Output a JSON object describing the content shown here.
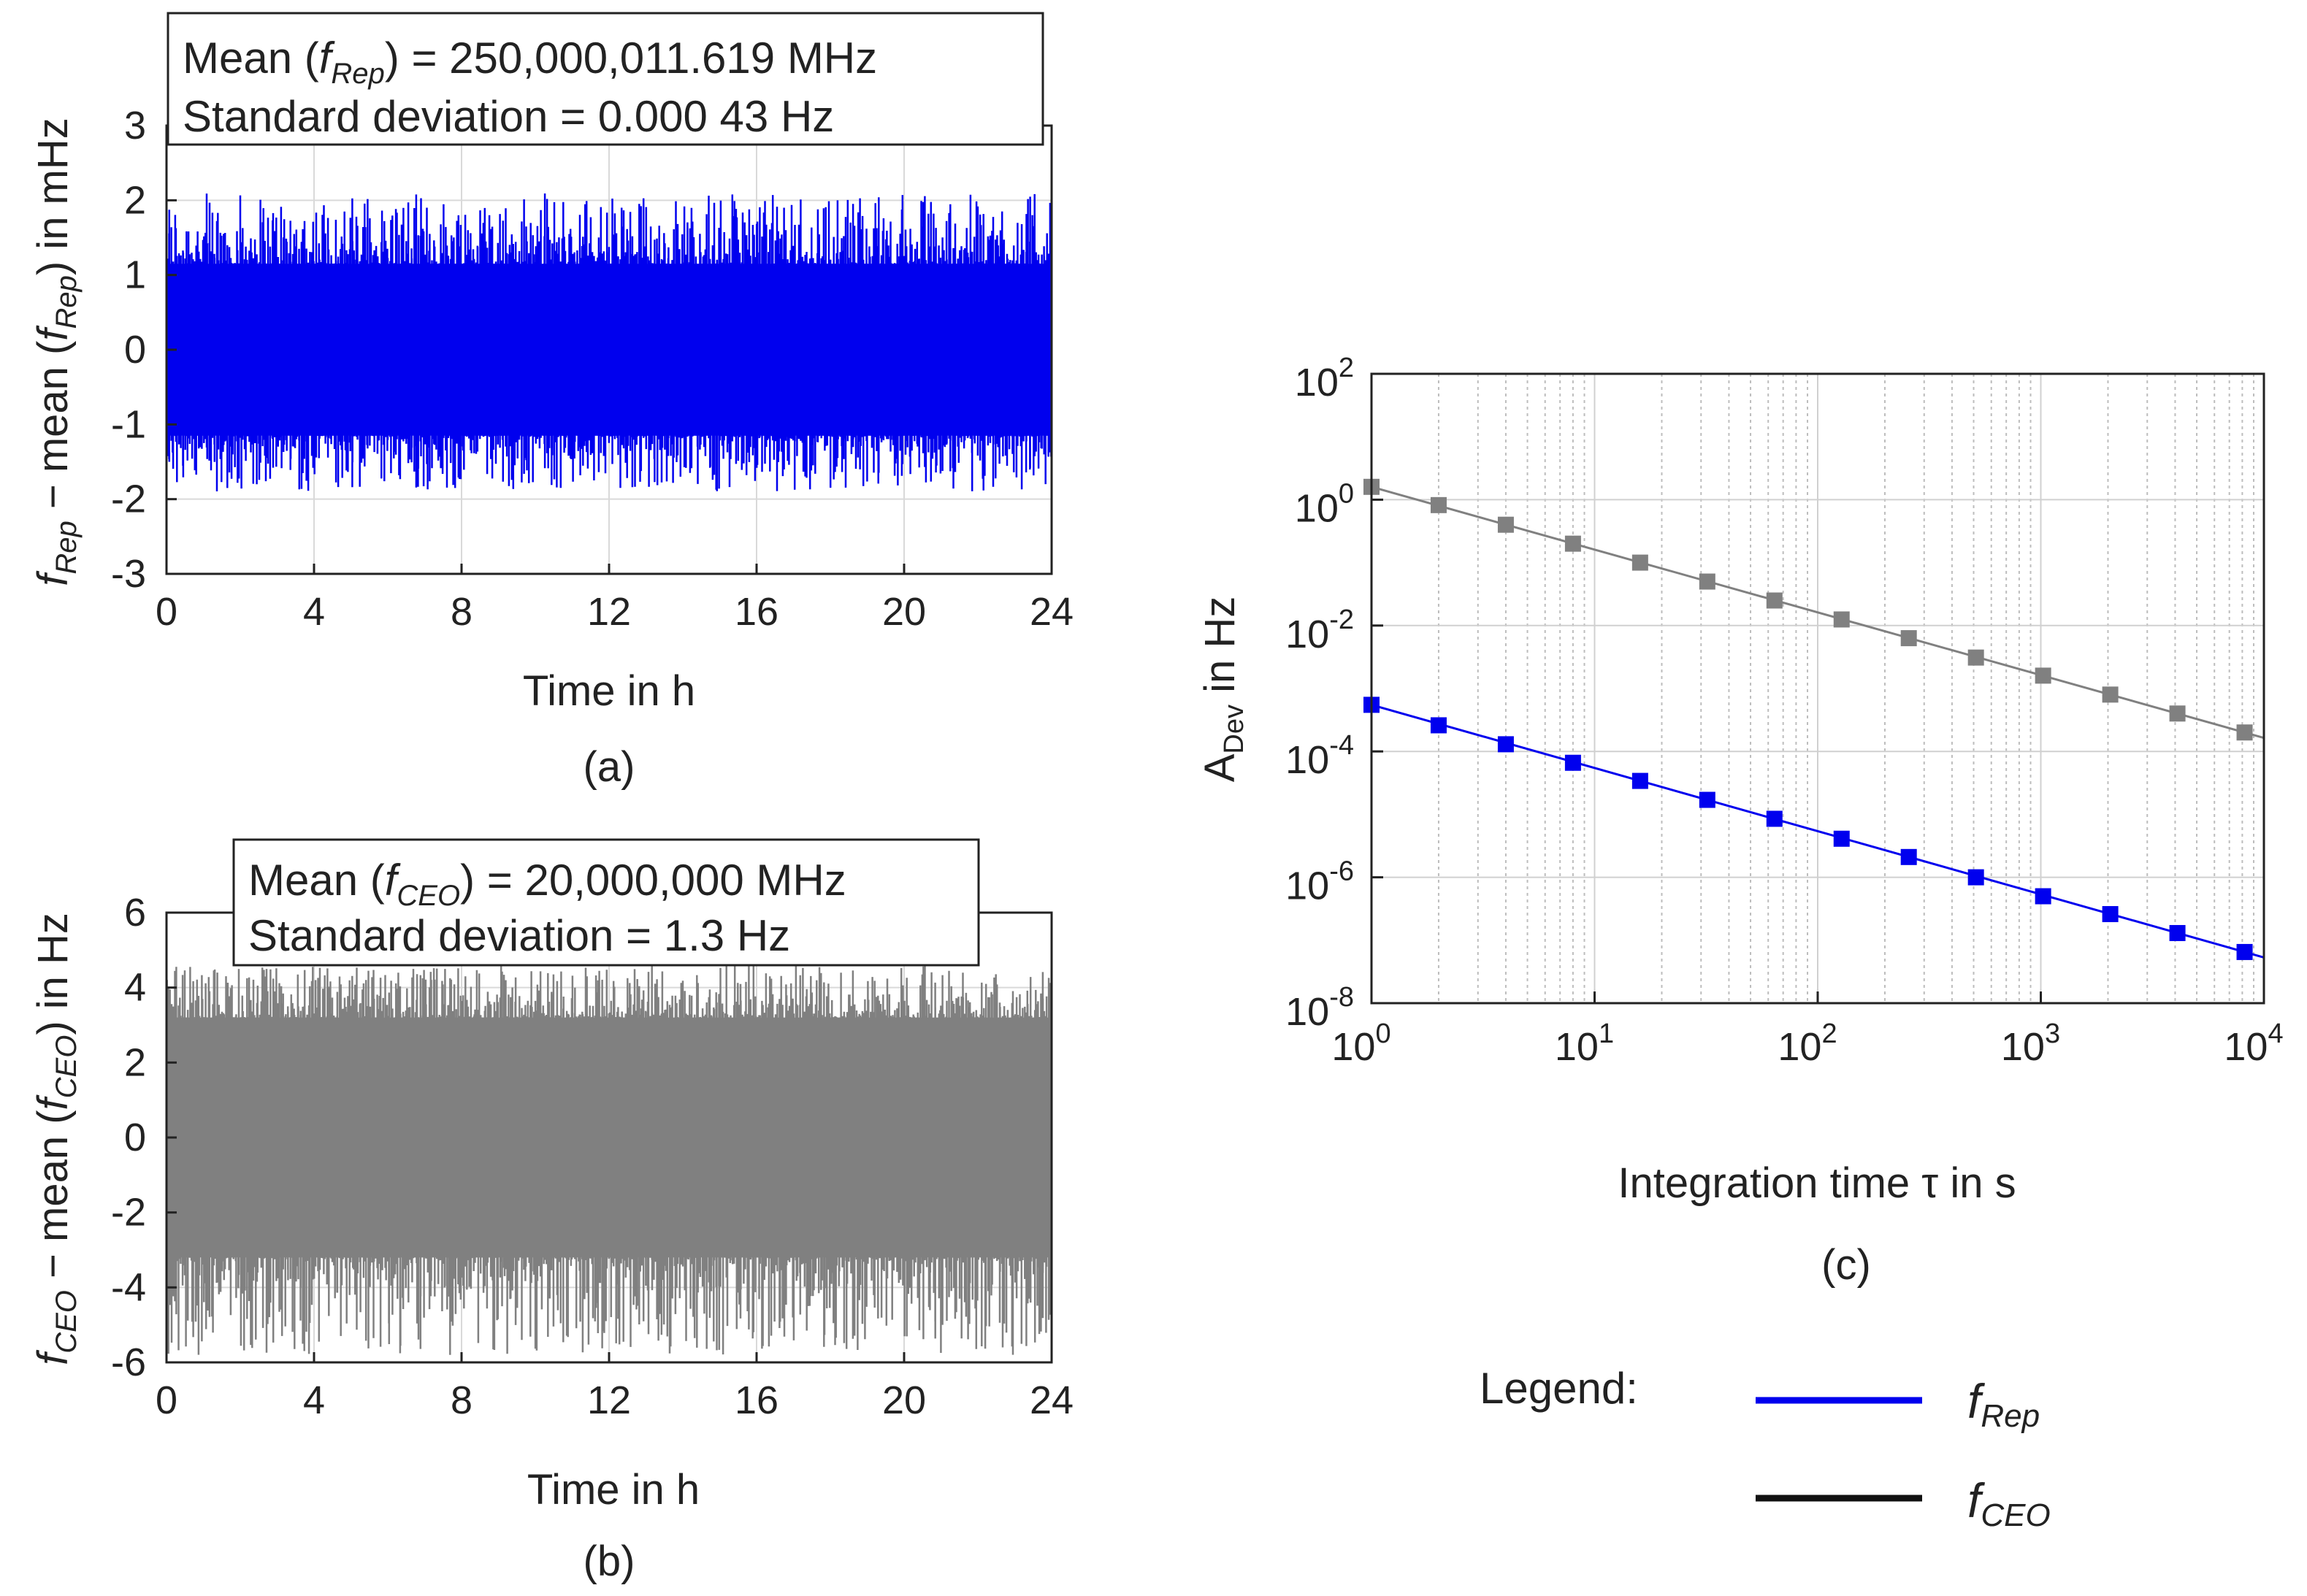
{
  "chart_data": [
    {
      "id": "a",
      "type": "line",
      "caption": "(a)",
      "xlabel": "Time in h",
      "ylabel": "f_Rep − mean (f_Rep) in mHz",
      "ylabel_parts": {
        "f": "f",
        "sub": "Rep",
        "mid": " − mean (",
        "f2": "f",
        "sub2": "Rep",
        "end": ") in mHz"
      },
      "xlim": [
        0,
        24
      ],
      "ylim": [
        -3,
        3
      ],
      "xticks": [
        0,
        4,
        8,
        12,
        16,
        20,
        24
      ],
      "yticks": [
        -3,
        -2,
        -1,
        0,
        1,
        2,
        3
      ],
      "grid": true,
      "color": "#0000ee",
      "band": {
        "low": -1.15,
        "high": 1.15,
        "spike_max": 2.1,
        "spike_min": -1.9
      },
      "annotation": {
        "line1_pre": "Mean (",
        "line1_f": "f",
        "line1_sub": "Rep",
        "line1_post": ") =  250,000,011.619 MHz",
        "line2": "Standard deviation = 0.000 43 Hz"
      }
    },
    {
      "id": "b",
      "type": "line",
      "caption": "(b)",
      "xlabel": "Time in h",
      "ylabel": "f_CEO − mean (f_CEO) in Hz",
      "ylabel_parts": {
        "f": "f",
        "sub": "CEO",
        "mid": " − mean (",
        "f2": "f",
        "sub2": "CEO",
        "end": ") in Hz"
      },
      "xlim": [
        0,
        24
      ],
      "ylim": [
        -6,
        6
      ],
      "xticks": [
        0,
        4,
        8,
        12,
        16,
        20,
        24
      ],
      "yticks": [
        -6,
        -4,
        -2,
        0,
        2,
        4,
        6
      ],
      "grid": true,
      "color": "#808080",
      "band": {
        "low": -3.2,
        "high": 3.2,
        "spike_max": 4.6,
        "spike_min": -5.8
      },
      "annotation": {
        "line1_pre": "Mean (",
        "line1_f": "f",
        "line1_sub": "CEO",
        "line1_post": ") =  20,000,000 MHz",
        "line2": "Standard deviation = 1.3 Hz"
      }
    },
    {
      "id": "c",
      "type": "line",
      "caption": "(c)",
      "xlabel": "Integration time τ in s",
      "ylabel_main": "A",
      "ylabel_sub": "Dev",
      "ylabel_end": " in Hz",
      "xscale": "log",
      "yscale": "log",
      "xlim_exp": [
        0,
        4
      ],
      "ylim_exp": [
        -8,
        2
      ],
      "xtick_exps": [
        "0",
        "1",
        "2",
        "3",
        "4"
      ],
      "ytick_exps": [
        "-8",
        "-6",
        "-4",
        "-2",
        "0",
        "2"
      ],
      "tick_base": "10",
      "grid": true,
      "series": [
        {
          "name": "f_Rep",
          "color": "#0000ee",
          "x": [
            1,
            2,
            4,
            8,
            16,
            32,
            64,
            128,
            256,
            512,
            1024,
            2048,
            4096,
            8192
          ],
          "y": [
            0.00055,
            0.00026,
            0.00013,
            6.6e-05,
            3.4e-05,
            1.7e-05,
            8.5e-06,
            4.1e-06,
            2.1e-06,
            1e-06,
            5e-07,
            2.6e-07,
            1.3e-07,
            6.5e-08
          ]
        },
        {
          "name": "f_CEO",
          "color": "#808080",
          "x": [
            1,
            2,
            4,
            8,
            16,
            32,
            64,
            128,
            256,
            512,
            1024,
            2048,
            4096,
            8192
          ],
          "y": [
            1.6,
            0.82,
            0.4,
            0.2,
            0.1,
            0.05,
            0.025,
            0.0125,
            0.0063,
            0.0031,
            0.0016,
            0.0008,
            0.0004,
            0.0002
          ]
        }
      ]
    }
  ],
  "legend": {
    "title": "Legend:",
    "items": [
      {
        "f": "f",
        "sub": "Rep",
        "color": "#0000ee"
      },
      {
        "f": "f",
        "sub": "CEO",
        "color": "#111111"
      }
    ]
  }
}
